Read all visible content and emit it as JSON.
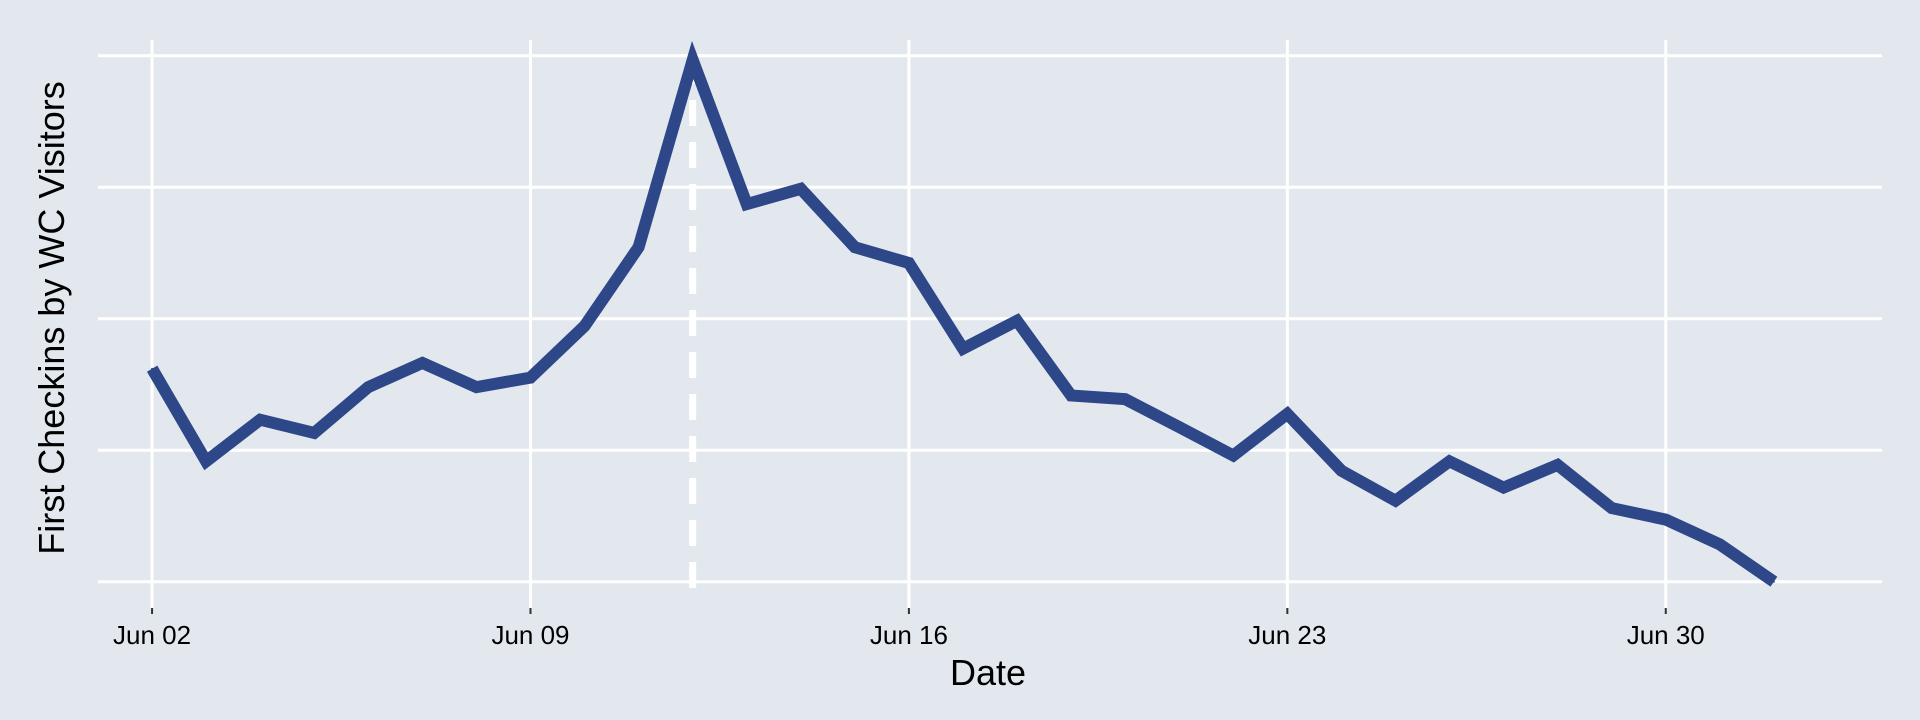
{
  "chart_data": {
    "type": "line",
    "title": "",
    "xlabel": "Date",
    "ylabel": "First Checkins by WC Visitors",
    "x_ticks": [
      "Jun 02",
      "Jun 09",
      "Jun 16",
      "Jun 23",
      "Jun 30"
    ],
    "x_tick_dates": [
      "2024-06-02",
      "2024-06-09",
      "2024-06-16",
      "2024-06-23",
      "2024-06-30"
    ],
    "xlim": [
      "2024-06-01",
      "2024-07-04"
    ],
    "ylim": [
      -0.05,
      1.03
    ],
    "y_gridlines": [
      0,
      0.25,
      0.5,
      0.75,
      1.0
    ],
    "y_tick_labels_visible": false,
    "grid": true,
    "vertical_marker": {
      "date": "2024-06-12",
      "style": "dashed",
      "color": "#ffffff"
    },
    "colors": {
      "background": "#e3e8ef",
      "panel": "#e3e8ef",
      "grid": "#ffffff",
      "line": "#2e4788"
    },
    "series": [
      {
        "color": "#2e4788",
        "points": [
          {
            "x": "2024-06-02",
            "y": 0.405
          },
          {
            "x": "2024-06-03",
            "y": 0.229
          },
          {
            "x": "2024-06-04",
            "y": 0.308
          },
          {
            "x": "2024-06-05",
            "y": 0.283
          },
          {
            "x": "2024-06-06",
            "y": 0.37
          },
          {
            "x": "2024-06-07",
            "y": 0.416
          },
          {
            "x": "2024-06-08",
            "y": 0.37
          },
          {
            "x": "2024-06-09",
            "y": 0.388
          },
          {
            "x": "2024-06-10",
            "y": 0.486
          },
          {
            "x": "2024-06-11",
            "y": 0.636
          },
          {
            "x": "2024-06-12",
            "y": 0.992
          },
          {
            "x": "2024-06-13",
            "y": 0.718
          },
          {
            "x": "2024-06-14",
            "y": 0.747
          },
          {
            "x": "2024-06-15",
            "y": 0.636
          },
          {
            "x": "2024-06-16",
            "y": 0.606
          },
          {
            "x": "2024-06-17",
            "y": 0.443
          },
          {
            "x": "2024-06-18",
            "y": 0.496
          },
          {
            "x": "2024-06-19",
            "y": 0.354
          },
          {
            "x": "2024-06-20",
            "y": 0.347
          },
          {
            "x": "2024-06-21",
            "y": 0.294
          },
          {
            "x": "2024-06-22",
            "y": 0.24
          },
          {
            "x": "2024-06-23",
            "y": 0.319
          },
          {
            "x": "2024-06-24",
            "y": 0.211
          },
          {
            "x": "2024-06-25",
            "y": 0.154
          },
          {
            "x": "2024-06-26",
            "y": 0.229
          },
          {
            "x": "2024-06-27",
            "y": 0.179
          },
          {
            "x": "2024-06-28",
            "y": 0.222
          },
          {
            "x": "2024-06-29",
            "y": 0.14
          },
          {
            "x": "2024-06-30",
            "y": 0.118
          },
          {
            "x": "2024-07-01",
            "y": 0.071
          },
          {
            "x": "2024-07-02",
            "y": 0.0
          }
        ]
      }
    ]
  }
}
